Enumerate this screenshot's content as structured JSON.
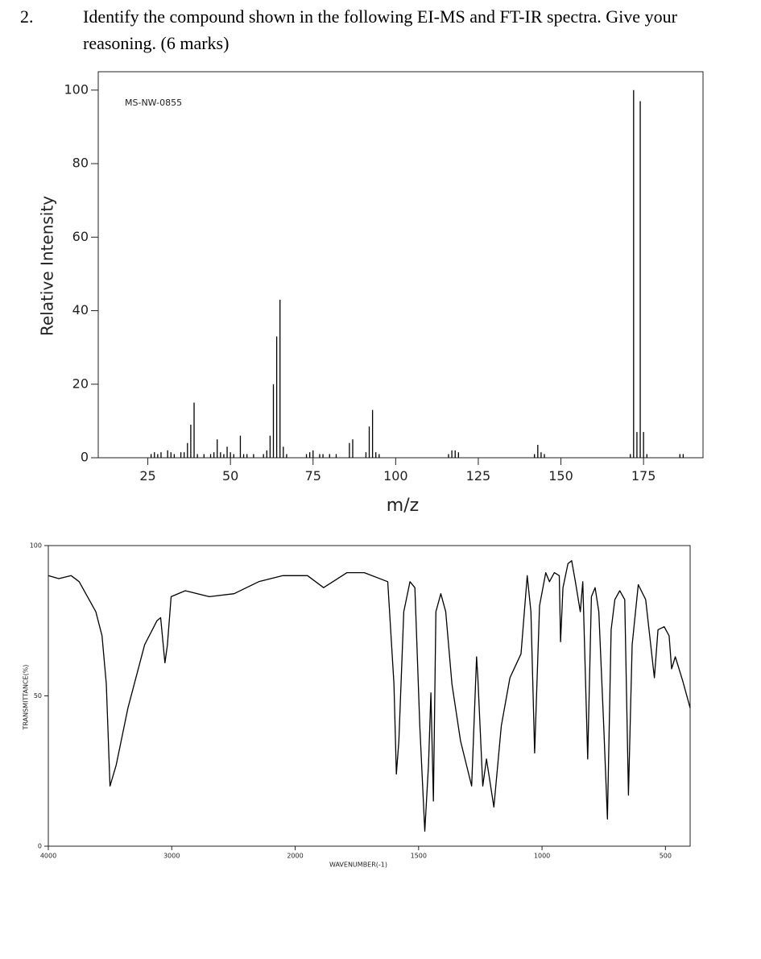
{
  "question": {
    "number": "2.",
    "text": "Identify the compound shown in the following EI-MS and FT-IR spectra. Give your reasoning. (6 marks)"
  },
  "chart_data": [
    {
      "type": "bar",
      "title": "MS-NW-0855",
      "xlabel": "m/z",
      "ylabel": "Relative Intensity",
      "color": "#000000",
      "x": [
        26,
        27,
        28,
        29,
        31,
        32,
        33,
        35,
        36,
        37,
        38,
        39,
        40,
        42,
        44,
        45,
        46,
        47,
        48,
        49,
        50,
        51,
        53,
        54,
        55,
        57,
        60,
        61,
        62,
        63,
        64,
        65,
        66,
        67,
        73,
        74,
        75,
        77,
        78,
        80,
        82,
        86,
        87,
        91,
        92,
        93,
        94,
        95,
        116,
        117,
        118,
        119,
        142,
        143,
        144,
        145,
        171,
        172,
        173,
        174,
        175,
        176,
        186,
        187
      ],
      "values": [
        1,
        1.5,
        1,
        1.5,
        2,
        1.5,
        1,
        1.5,
        1.5,
        4,
        9,
        15,
        1,
        1,
        1,
        1.5,
        5,
        1.5,
        1,
        3,
        1.5,
        1,
        6,
        1,
        1,
        1,
        1,
        2,
        6,
        20,
        33,
        43,
        3,
        1,
        1,
        1.5,
        2,
        1,
        1,
        1,
        1,
        4,
        5,
        1.5,
        8.5,
        13,
        1.5,
        1,
        1,
        2,
        2,
        1.5,
        1,
        3.5,
        1.5,
        1,
        1,
        100,
        7,
        97,
        7,
        1,
        1,
        1
      ],
      "xlim": [
        10,
        193
      ],
      "ylim": [
        0,
        105
      ],
      "xticks": [
        25,
        50,
        75,
        100,
        125,
        150,
        175
      ],
      "yticks": [
        0,
        20,
        40,
        60,
        80,
        100
      ]
    },
    {
      "type": "line",
      "xlabel": "WAVENUMBER(-1)",
      "ylabel": "TRANSMITTANCE(%)",
      "color": "#000000",
      "x_scale_change": 2000,
      "x": [
        4000,
        3915,
        3815,
        3750,
        3615,
        3565,
        3530,
        3500,
        3450,
        3355,
        3220,
        3120,
        3090,
        3055,
        3035,
        3005,
        2890,
        2695,
        2495,
        2295,
        2100,
        1950,
        1885,
        1790,
        1720,
        1625,
        1600,
        1590,
        1580,
        1560,
        1535,
        1515,
        1495,
        1475,
        1460,
        1450,
        1440,
        1430,
        1410,
        1390,
        1365,
        1330,
        1285,
        1265,
        1260,
        1240,
        1225,
        1195,
        1165,
        1130,
        1085,
        1060,
        1045,
        1030,
        1010,
        985,
        970,
        950,
        930,
        925,
        915,
        895,
        880,
        865,
        845,
        835,
        815,
        800,
        785,
        770,
        750,
        735,
        720,
        705,
        685,
        665,
        650,
        635,
        610,
        580,
        545,
        530,
        505,
        485,
        475,
        460,
        430,
        400
      ],
      "values": [
        90,
        89,
        90,
        88,
        78,
        70,
        54,
        20,
        27,
        46,
        67,
        75,
        76,
        61,
        67,
        83,
        85,
        83,
        84,
        88,
        90,
        90,
        86,
        91,
        91,
        88,
        54,
        24,
        35,
        78,
        88,
        86,
        40,
        5,
        27,
        51,
        15,
        78,
        84,
        78,
        54,
        35,
        20,
        63,
        56,
        20,
        29,
        13,
        40,
        56,
        64,
        90,
        78,
        31,
        80,
        91,
        88,
        91,
        90,
        68,
        86,
        94,
        95,
        88,
        78,
        88,
        29,
        83,
        86,
        78,
        40,
        9,
        72,
        82,
        85,
        82,
        17,
        67,
        87,
        82,
        56,
        72,
        73,
        70,
        59,
        63,
        55,
        46
      ],
      "xlim": [
        4000,
        400
      ],
      "ylim": [
        0,
        100
      ],
      "xticks": [
        4000,
        3000,
        2000,
        1500,
        1000,
        500
      ],
      "yticks": [
        0,
        50,
        100
      ]
    }
  ]
}
